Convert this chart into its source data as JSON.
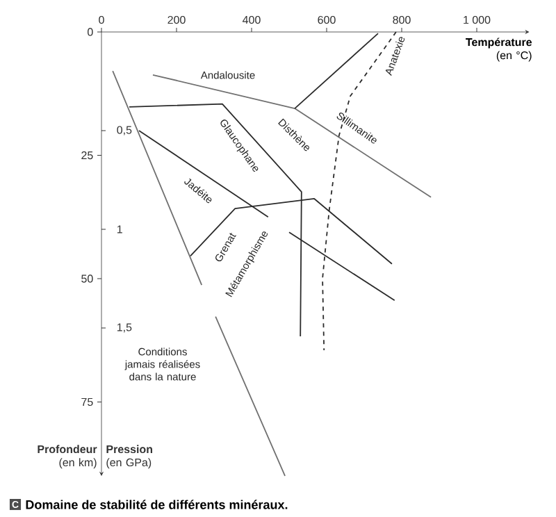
{
  "chart_data": {
    "type": "line",
    "title": "Domaine de stabilité de différents minéraux.",
    "xlabel": "**Température** (en °C)",
    "ylabel": "**Profondeur** (en km)",
    "y2label": "**Pression** (en GPa)",
    "xlim": [
      0,
      1140
    ],
    "xticks": [
      0,
      200,
      400,
      600,
      800,
      {
        "value": 1000,
        "label": "1 000"
      }
    ],
    "ylim": [
      90,
      0
    ],
    "yticks": [
      0,
      25,
      50,
      75
    ],
    "y2lim": [
      2.25,
      0
    ],
    "y2ticks": [
      {
        "value": 0.5,
        "label": "0,5"
      },
      {
        "value": 1,
        "label": "1"
      },
      {
        "value": 1.5,
        "label": "1,5"
      }
    ],
    "series": [
      {
        "color": "#707070",
        "x": [
          137,
          515,
          878
        ],
        "values": [
          8.7,
          15.5,
          33.5
        ]
      },
      {
        "color": "#2b2b2b",
        "x": [
          515,
          737
        ],
        "values": [
          15.5,
          0.3
        ]
      },
      {
        "color": "#2b2b2b",
        "line_style": "dashed",
        "x": [
          785,
          663,
          633,
          607,
          589,
          593
        ],
        "values": [
          0,
          13,
          21,
          36,
          50,
          64.5
        ]
      },
      {
        "color": "#2b2b2b",
        "x": [
          74,
          322,
          533,
          530
        ],
        "values": [
          15.2,
          14.6,
          32.4,
          61.7
        ]
      },
      {
        "color": "#2b2b2b",
        "x": [
          100,
          444
        ],
        "values": [
          20,
          37.5
        ]
      },
      {
        "color": "#707070",
        "x": [
          30,
          267,
          285,
          304,
          489
        ],
        "values": [
          7.9,
          51.3,
          null,
          57.7,
          90
        ]
      },
      {
        "color": "#2b2b2b",
        "x": [
          237,
          356,
          567,
          774
        ],
        "values": [
          45.4,
          35.8,
          33.8,
          47
        ]
      },
      {
        "color": "#2b2b2b",
        "x": [
          500,
          781
        ],
        "values": [
          40.6,
          54.4
        ]
      }
    ],
    "annotations": [
      "C",
      "Andalousite",
      "Disthène",
      "Sillimanite",
      "Anatexie",
      "Glaucophane",
      "Jadéite",
      "Grenat",
      "Métamorphisme",
      "Conditions jamais réalisées dans la nature"
    ]
  }
}
